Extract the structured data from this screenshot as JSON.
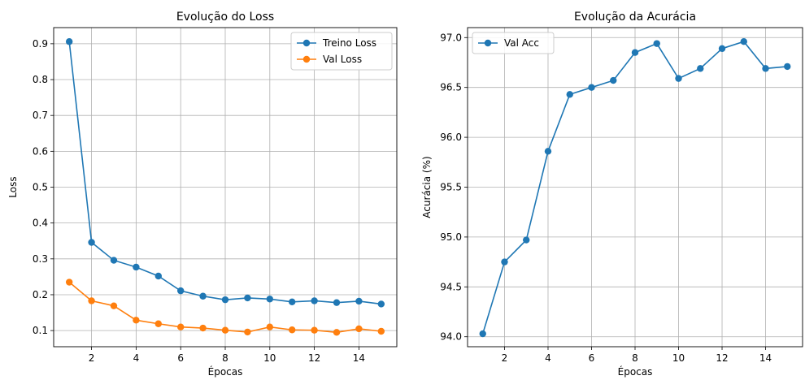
{
  "chart_data": [
    {
      "type": "line",
      "title": "Evolução do Loss",
      "xlabel": "Épocas",
      "ylabel": "Loss",
      "xlim": [
        0.3,
        15.7
      ],
      "ylim": [
        0.055,
        0.945
      ],
      "xticks": [
        2,
        4,
        6,
        8,
        10,
        12,
        14
      ],
      "yticks": [
        0.1,
        0.2,
        0.3,
        0.4,
        0.5,
        0.6,
        0.7,
        0.8,
        0.9
      ],
      "ytick_labels": [
        "0.1",
        "0.2",
        "0.3",
        "0.4",
        "0.5",
        "0.6",
        "0.7",
        "0.8",
        "0.9"
      ],
      "grid": true,
      "legend": "top-right",
      "x": [
        1,
        2,
        3,
        4,
        5,
        6,
        7,
        8,
        9,
        10,
        11,
        12,
        13,
        14,
        15
      ],
      "series": [
        {
          "name": "Treino Loss",
          "color": "#1f77b4",
          "values": [
            0.906,
            0.346,
            0.296,
            0.277,
            0.252,
            0.211,
            0.196,
            0.186,
            0.191,
            0.188,
            0.18,
            0.183,
            0.178,
            0.182,
            0.174
          ]
        },
        {
          "name": "Val Loss",
          "color": "#ff7f0e",
          "values": [
            0.235,
            0.183,
            0.169,
            0.129,
            0.119,
            0.11,
            0.107,
            0.101,
            0.096,
            0.11,
            0.102,
            0.101,
            0.095,
            0.105,
            0.098
          ]
        }
      ]
    },
    {
      "type": "line",
      "title": "Evolução da Acurácia",
      "xlabel": "Épocas",
      "ylabel": "Acurácia (%)",
      "xlim": [
        0.3,
        15.7
      ],
      "ylim": [
        93.9,
        97.1
      ],
      "xticks": [
        2,
        4,
        6,
        8,
        10,
        12,
        14
      ],
      "yticks": [
        94.0,
        94.5,
        95.0,
        95.5,
        96.0,
        96.5,
        97.0
      ],
      "ytick_labels": [
        "94.0",
        "94.5",
        "95.0",
        "95.5",
        "96.0",
        "96.5",
        "97.0"
      ],
      "grid": true,
      "legend": "top-left",
      "x": [
        1,
        2,
        3,
        4,
        5,
        6,
        7,
        8,
        9,
        10,
        11,
        12,
        13,
        14,
        15
      ],
      "series": [
        {
          "name": "Val Acc",
          "color": "#1f77b4",
          "values": [
            94.03,
            94.75,
            94.97,
            95.86,
            96.43,
            96.5,
            96.57,
            96.85,
            96.94,
            96.59,
            96.69,
            96.89,
            96.96,
            96.69,
            96.71
          ]
        }
      ]
    }
  ]
}
